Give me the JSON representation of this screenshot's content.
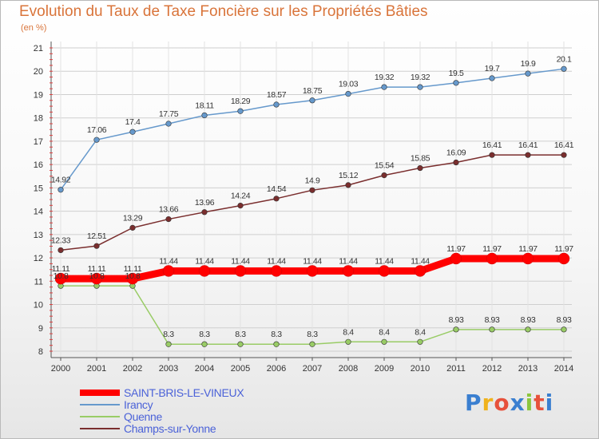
{
  "title": "Evolution du Taux de Taxe Foncière sur les Propriétés Bâties",
  "subtitle": "(en %)",
  "logo": {
    "text": "Proxiti",
    "colors": [
      "#3a7fd0",
      "#f0b21c",
      "#e7513b",
      "#3a7fd0",
      "#8cc63e",
      "#e7513b",
      "#3a7fd0"
    ]
  },
  "chart_data": {
    "type": "line",
    "title": "Evolution du Taux de Taxe Foncière sur les Propriétés Bâties",
    "subtitle": "(en %)",
    "xlabel": "",
    "ylabel": "",
    "x": [
      "2000",
      "2001",
      "2002",
      "2003",
      "2004",
      "2005",
      "2006",
      "2007",
      "2008",
      "2009",
      "2010",
      "2011",
      "2012",
      "2013",
      "2014"
    ],
    "ylim": [
      8,
      21
    ],
    "yticks": [
      "8",
      "9",
      "10",
      "11",
      "12",
      "13",
      "14",
      "15",
      "16",
      "17",
      "18",
      "19",
      "20",
      "21"
    ],
    "grid": true,
    "legend_position": "bottom-left",
    "series": [
      {
        "name": "SAINT-BRIS-LE-VINEUX",
        "color": "#ff0000",
        "width": "thick",
        "values": [
          11.11,
          11.11,
          11.11,
          11.44,
          11.44,
          11.44,
          11.44,
          11.44,
          11.44,
          11.44,
          11.44,
          11.97,
          11.97,
          11.97,
          11.97
        ],
        "labels": [
          "11.11",
          "11.11",
          "11.11",
          "11.44",
          "11.44",
          "11.44",
          "11.44",
          "11.44",
          "11.44",
          "11.44",
          "11.44",
          "11.97",
          "11.97",
          "11.97",
          "11.97"
        ]
      },
      {
        "name": "Irancy",
        "color": "#6699cc",
        "width": "thin",
        "values": [
          14.92,
          17.06,
          17.4,
          17.75,
          18.11,
          18.29,
          18.57,
          18.75,
          19.03,
          19.32,
          19.32,
          19.5,
          19.7,
          19.9,
          20.1
        ],
        "labels": [
          "14.92",
          "17.06",
          "17.4",
          "17.75",
          "18.11",
          "18.29",
          "18.57",
          "18.75",
          "19.03",
          "19.32",
          "19.32",
          "19.5",
          "19.7",
          "19.9",
          "20.1"
        ]
      },
      {
        "name": "Quenne",
        "color": "#99cc66",
        "width": "thin",
        "values": [
          10.8,
          10.8,
          10.8,
          8.3,
          8.3,
          8.3,
          8.3,
          8.3,
          8.4,
          8.4,
          8.4,
          8.93,
          8.93,
          8.93,
          8.93
        ],
        "labels": [
          "10.8",
          "10.8",
          "10.8",
          "8.3",
          "8.3",
          "8.3",
          "8.3",
          "8.3",
          "8.4",
          "8.4",
          "8.4",
          "8.93",
          "8.93",
          "8.93",
          "8.93"
        ]
      },
      {
        "name": "Champs-sur-Yonne",
        "color": "#7a2e2e",
        "width": "thin",
        "values": [
          12.33,
          12.51,
          13.29,
          13.66,
          13.96,
          14.24,
          14.54,
          14.9,
          15.12,
          15.54,
          15.85,
          16.09,
          16.41,
          16.41,
          16.41
        ],
        "labels": [
          "12.33",
          "12.51",
          "13.29",
          "13.66",
          "13.96",
          "14.24",
          "14.54",
          "14.9",
          "15.12",
          "15.54",
          "15.85",
          "16.09",
          "16.41",
          "16.41",
          "16.41"
        ]
      }
    ]
  }
}
